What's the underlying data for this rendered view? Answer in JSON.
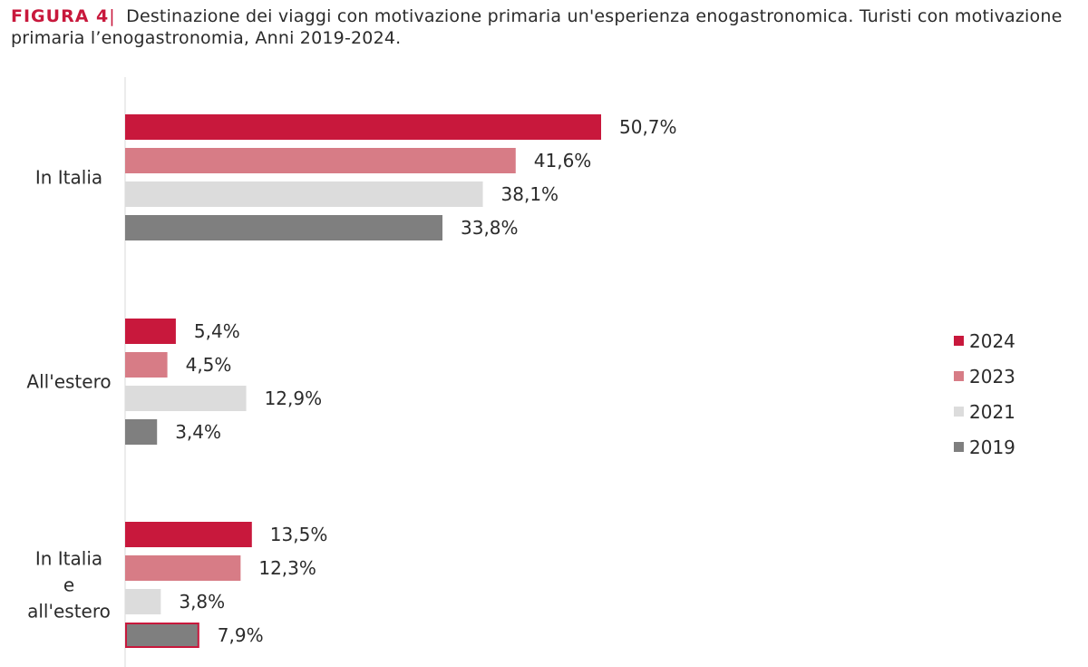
{
  "title": {
    "figure": "FIGURA 4",
    "separator": "|",
    "text": "Destinazione dei viaggi con motivazione primaria un'esperienza enogastronomica. Turisti con motivazione primaria l’enogastronomia, Anni 2019-2024."
  },
  "colors": {
    "2024": "#c8183c",
    "2023": "#d77c86",
    "2021": "#dcdcdc",
    "2019": "#7f7f7f",
    "axis": "#d9d9d9",
    "highlight_border": "#c8183c"
  },
  "chart_data": {
    "type": "bar",
    "orientation": "horizontal",
    "title": "Destinazione dei viaggi con motivazione primaria un'esperienza enogastronomica. Turisti con motivazione primaria l’enogastronomia, Anni 2019-2024.",
    "xlabel": "",
    "ylabel": "",
    "xlim": [
      0,
      55
    ],
    "grid": false,
    "legend_position": "right",
    "categories": [
      {
        "label_lines": [
          "In Italia"
        ]
      },
      {
        "label_lines": [
          "All'estero"
        ]
      },
      {
        "label_lines": [
          "In Italia",
          "e",
          "all'estero"
        ]
      }
    ],
    "series": [
      {
        "name": "2024",
        "values": [
          50.7,
          5.4,
          13.5
        ],
        "labels": [
          "50,7%",
          "5,4%",
          "13,5%"
        ]
      },
      {
        "name": "2023",
        "values": [
          41.6,
          4.5,
          12.3
        ],
        "labels": [
          "41,6%",
          "4,5%",
          "12,3%"
        ]
      },
      {
        "name": "2021",
        "values": [
          38.1,
          12.9,
          3.8
        ],
        "labels": [
          "38,1%",
          "12,9%",
          "3,8%"
        ]
      },
      {
        "name": "2019",
        "values": [
          33.8,
          3.4,
          7.9
        ],
        "labels": [
          "33,8%",
          "3,4%",
          "7,9%"
        ]
      }
    ],
    "highlighted": {
      "series": "2019",
      "category_index": 2
    }
  },
  "legend": {
    "items": [
      {
        "name": "2024",
        "label": "2024"
      },
      {
        "name": "2023",
        "label": "2023"
      },
      {
        "name": "2021",
        "label": "2021"
      },
      {
        "name": "2019",
        "label": "2019"
      }
    ]
  }
}
